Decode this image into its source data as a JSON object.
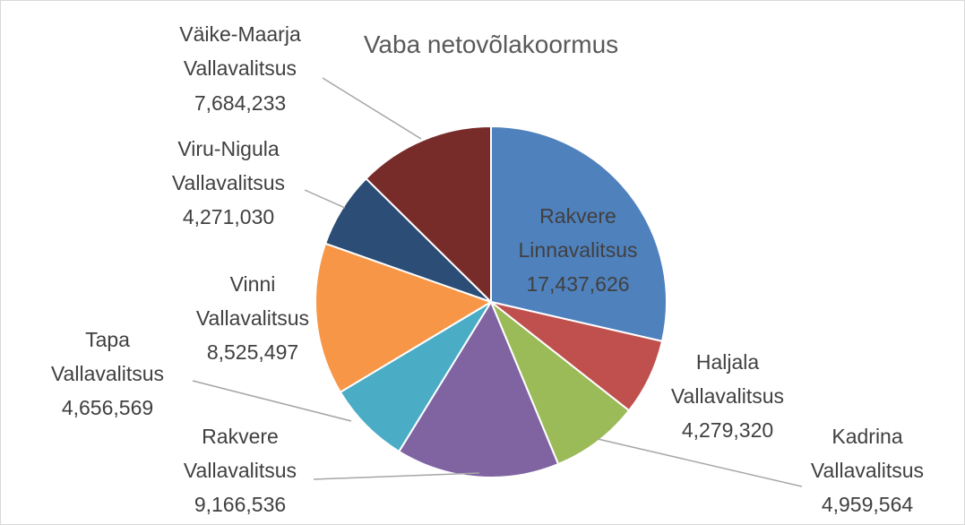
{
  "chart_data": {
    "type": "pie",
    "title": "Vaba netovõlakoormus",
    "categories": [
      "Rakvere Linnavalitsus",
      "Haljala Vallavalitsus",
      "Kadrina Vallavalitsus",
      "Rakvere Vallavalitsus",
      "Tapa Vallavalitsus",
      "Vinni Vallavalitsus",
      "Viru-Nigula Vallavalitsus",
      "Väike-Maarja Vallavalitsus"
    ],
    "values": [
      17437626,
      4279320,
      4959564,
      9166536,
      4656569,
      8525497,
      4271030,
      7684233
    ],
    "value_labels": [
      "17,437,626",
      "4,279,320",
      "4,959,564",
      "9,166,536",
      "4,656,569",
      "8,525,497",
      "4,271,030",
      "7,684,233"
    ],
    "colors": [
      "#4f81bd",
      "#c0504d",
      "#9bbb59",
      "#8064a2",
      "#4bacc6",
      "#f79646",
      "#2c4d75",
      "#772c2a"
    ]
  }
}
